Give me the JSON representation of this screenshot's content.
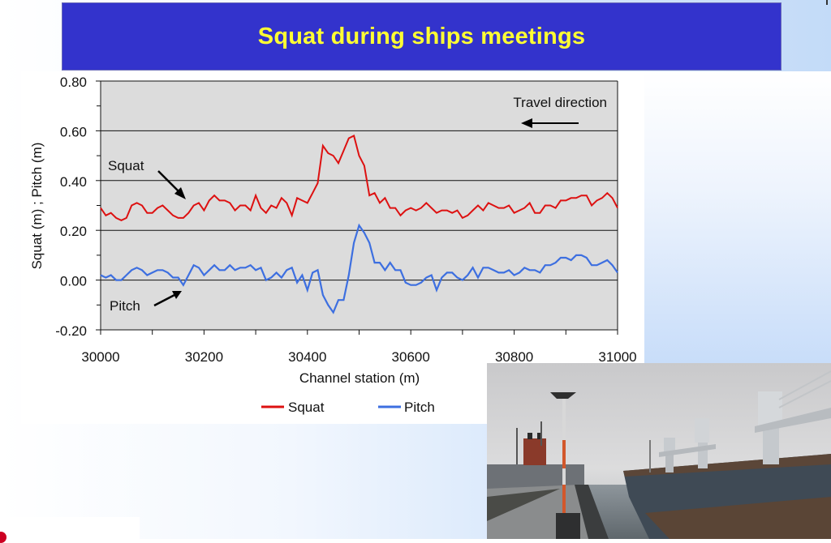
{
  "slide": {
    "title": "Squat during ships meetings"
  },
  "chart_data": {
    "type": "line",
    "title": "Squat during ships meetings",
    "xlabel": "Channel station (m)",
    "ylabel": "Squat (m) ; Pitch (m)",
    "xlim": [
      30000,
      31000
    ],
    "ylim": [
      -0.2,
      0.8
    ],
    "x_ticks": [
      "30000",
      "30200",
      "30400",
      "30600",
      "30800",
      "31000"
    ],
    "y_ticks": [
      "0.80",
      "0.60",
      "0.40",
      "0.20",
      "0.00",
      "-0.20"
    ],
    "grid": "horizontal major lines at 0.20 intervals",
    "legend": {
      "position": "bottom",
      "entries": [
        "Squat",
        "Pitch"
      ]
    },
    "annotations": [
      {
        "text": "Travel direction",
        "arrow": "left"
      },
      {
        "text": "Squat",
        "arrow": "points to squat curve near 30170"
      },
      {
        "text": "Pitch",
        "arrow": "points to pitch curve near 30160"
      }
    ],
    "x": [
      30000,
      30010,
      30020,
      30030,
      30040,
      30050,
      30060,
      30070,
      30080,
      30090,
      30100,
      30110,
      30120,
      30130,
      30140,
      30150,
      30160,
      30170,
      30180,
      30190,
      30200,
      30210,
      30220,
      30230,
      30240,
      30250,
      30260,
      30270,
      30280,
      30290,
      30300,
      30310,
      30320,
      30330,
      30340,
      30350,
      30360,
      30370,
      30380,
      30390,
      30400,
      30410,
      30420,
      30430,
      30440,
      30450,
      30460,
      30470,
      30480,
      30490,
      30500,
      30510,
      30520,
      30530,
      30540,
      30550,
      30560,
      30570,
      30580,
      30590,
      30600,
      30610,
      30620,
      30630,
      30640,
      30650,
      30660,
      30670,
      30680,
      30690,
      30700,
      30710,
      30720,
      30730,
      30740,
      30750,
      30760,
      30770,
      30780,
      30790,
      30800,
      30810,
      30820,
      30830,
      30840,
      30850,
      30860,
      30870,
      30880,
      30890,
      30900,
      30910,
      30920,
      30930,
      30940,
      30950,
      30960,
      30970,
      30980,
      30990,
      31000
    ],
    "series": [
      {
        "name": "Squat",
        "color": "#dd1111",
        "values": [
          0.29,
          0.26,
          0.27,
          0.25,
          0.24,
          0.25,
          0.3,
          0.31,
          0.3,
          0.27,
          0.27,
          0.29,
          0.3,
          0.28,
          0.26,
          0.25,
          0.25,
          0.27,
          0.3,
          0.31,
          0.28,
          0.32,
          0.34,
          0.32,
          0.32,
          0.31,
          0.28,
          0.3,
          0.3,
          0.28,
          0.34,
          0.29,
          0.27,
          0.3,
          0.29,
          0.33,
          0.31,
          0.26,
          0.33,
          0.32,
          0.31,
          0.35,
          0.39,
          0.54,
          0.51,
          0.5,
          0.47,
          0.52,
          0.57,
          0.58,
          0.5,
          0.46,
          0.34,
          0.35,
          0.31,
          0.33,
          0.29,
          0.29,
          0.26,
          0.28,
          0.29,
          0.28,
          0.29,
          0.31,
          0.29,
          0.27,
          0.28,
          0.28,
          0.27,
          0.28,
          0.25,
          0.26,
          0.28,
          0.3,
          0.28,
          0.31,
          0.3,
          0.29,
          0.29,
          0.3,
          0.27,
          0.28,
          0.29,
          0.31,
          0.27,
          0.27,
          0.3,
          0.3,
          0.29,
          0.32,
          0.32,
          0.33,
          0.33,
          0.34,
          0.34,
          0.3,
          0.32,
          0.33,
          0.35,
          0.33,
          0.29
        ]
      },
      {
        "name": "Pitch",
        "color": "#3d6fe0",
        "values": [
          0.02,
          0.01,
          0.02,
          0.0,
          0.0,
          0.02,
          0.04,
          0.05,
          0.04,
          0.02,
          0.03,
          0.04,
          0.04,
          0.03,
          0.01,
          0.01,
          -0.02,
          0.02,
          0.06,
          0.05,
          0.02,
          0.04,
          0.06,
          0.04,
          0.04,
          0.06,
          0.04,
          0.05,
          0.05,
          0.06,
          0.04,
          0.05,
          0.0,
          0.01,
          0.03,
          0.01,
          0.04,
          0.05,
          -0.01,
          0.02,
          -0.04,
          0.03,
          0.04,
          -0.06,
          -0.1,
          -0.13,
          -0.08,
          -0.08,
          0.02,
          0.15,
          0.22,
          0.19,
          0.15,
          0.07,
          0.07,
          0.04,
          0.07,
          0.04,
          0.04,
          -0.01,
          -0.02,
          -0.02,
          -0.01,
          0.01,
          0.02,
          -0.04,
          0.01,
          0.03,
          0.03,
          0.01,
          0.0,
          0.02,
          0.05,
          0.01,
          0.05,
          0.05,
          0.04,
          0.03,
          0.03,
          0.04,
          0.02,
          0.03,
          0.05,
          0.04,
          0.04,
          0.03,
          0.06,
          0.06,
          0.07,
          0.09,
          0.09,
          0.08,
          0.1,
          0.1,
          0.09,
          0.06,
          0.06,
          0.07,
          0.08,
          0.06,
          0.03
        ]
      }
    ]
  },
  "labels": {
    "travel_direction": "Travel direction",
    "squat_annotation": "Squat",
    "pitch_annotation": "Pitch",
    "legend_squat": "Squat",
    "legend_pitch": "Pitch",
    "xlabel": "Channel station (m)",
    "ylabel": "Squat (m) ; Pitch (m)"
  },
  "photo": {
    "description": "Photo of ships meeting in a canal: bulk carrier with cranes on the right, quay with GPS antenna pole on the left"
  }
}
